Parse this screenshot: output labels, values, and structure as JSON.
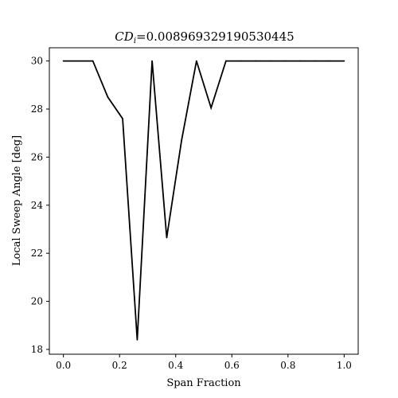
{
  "chart_data": {
    "type": "line",
    "title": "CD_i=0.008969329190530445",
    "title_math": "CD",
    "title_sub": "i",
    "title_value": "=0.008969329190530445",
    "xlabel": "Span Fraction",
    "ylabel": "Local Sweep Angle [deg]",
    "xlim": [
      -0.05,
      1.05
    ],
    "ylim": [
      17.8,
      30.55
    ],
    "xticks": [
      0.0,
      0.2,
      0.4,
      0.6,
      0.8,
      1.0
    ],
    "xtick_labels": [
      "0.0",
      "0.2",
      "0.4",
      "0.6",
      "0.8",
      "1.0"
    ],
    "yticks": [
      18,
      20,
      22,
      24,
      26,
      28,
      30
    ],
    "ytick_labels": [
      "18",
      "20",
      "22",
      "24",
      "26",
      "28",
      "30"
    ],
    "grid": false,
    "series": [
      {
        "color": "#000000",
        "x": [
          0.0,
          0.105,
          0.158,
          0.211,
          0.263,
          0.316,
          0.368,
          0.421,
          0.474,
          0.526,
          0.579,
          0.632,
          0.684,
          0.737,
          0.789,
          0.842,
          0.895,
          0.947,
          1.0
        ],
        "y": [
          30.0,
          30.0,
          28.5,
          27.6,
          18.4,
          30.0,
          22.65,
          26.7,
          30.0,
          28.05,
          30.0,
          30.0,
          30.0,
          30.0,
          30.0,
          30.0,
          30.0,
          30.0,
          30.0
        ]
      }
    ]
  }
}
